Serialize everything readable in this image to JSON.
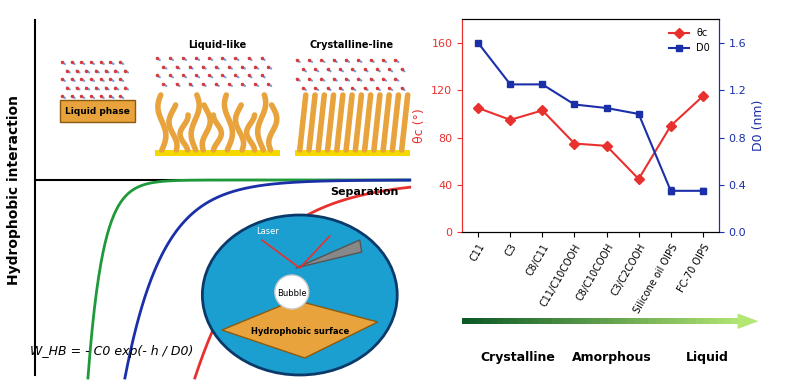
{
  "chart_data": {
    "type": "line",
    "categories": [
      "C11",
      "C3",
      "C8/C11",
      "C11/C10COOH",
      "C8/C10COOH",
      "C3/C2COOH",
      "Silicone oil OIPS",
      "FC-70 OIPS"
    ],
    "series": [
      {
        "name": "θc",
        "color": "#e8312f",
        "marker": "diamond",
        "values": [
          105,
          95,
          103,
          75,
          73,
          45,
          90,
          115
        ]
      },
      {
        "name": "D0",
        "color": "#1a2fa8",
        "marker": "square",
        "axis": "y2",
        "values": [
          1.6,
          1.25,
          1.25,
          1.08,
          1.05,
          1.0,
          0.35,
          0.35
        ],
        "errors": [
          0,
          0,
          0,
          0,
          0,
          0,
          0.03,
          0.02
        ]
      }
    ],
    "ylabel": "θc (°)",
    "y2label": "D0 (nm)",
    "ylim": [
      0,
      180
    ],
    "yticks": [
      0,
      40,
      80,
      120,
      160
    ],
    "y2lim": [
      0,
      1.8
    ],
    "y2ticks": [
      {
        "value": 0,
        "label": "0.0"
      },
      0.4,
      0.8,
      1.2,
      1.6
    ],
    "legend": "upper right"
  },
  "diagram": {
    "y_axis_label": "Hydrophobic interaction",
    "x_axis_label": "Separation",
    "panels": [
      "Liquid phase",
      "Liquid-like",
      "Crystalline-line"
    ],
    "inset": {
      "laser": "Laser",
      "bubble": "Bubble",
      "surface": "Hydrophobic surface"
    },
    "formula": "W_HB = - C0 exp(- h / D0)",
    "gradient_labels": [
      "Crystalline",
      "Amorphous",
      "Liquid"
    ]
  }
}
